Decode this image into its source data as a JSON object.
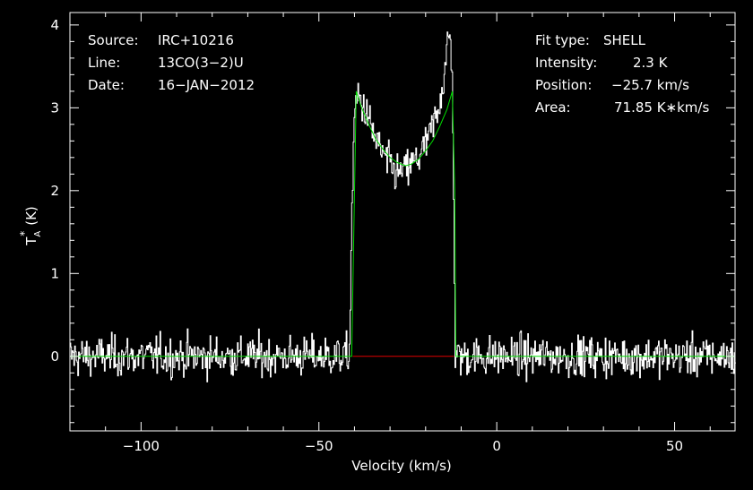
{
  "chart_data": {
    "type": "line",
    "title": "",
    "xlabel": "Velocity (km/s)",
    "ylabel": "T",
    "ylabel_sub": "A",
    "ylabel_sup": "*",
    "ylabel_unit": "(K)",
    "xlim": [
      -120,
      67
    ],
    "ylim": [
      -0.9,
      4.15
    ],
    "x_ticks": [
      -100,
      -50,
      0,
      50
    ],
    "x_tick_labels": [
      "−100",
      "−50",
      "0",
      "50"
    ],
    "y_ticks": [
      0,
      1,
      2,
      3,
      4
    ],
    "y_tick_labels": [
      "0",
      "1",
      "2",
      "3",
      "4"
    ],
    "grid": false,
    "info_left": [
      {
        "label": "Source:",
        "value": "IRC+10216"
      },
      {
        "label": "Line:",
        "value": "13CO(3−2)U"
      },
      {
        "label": "Date:",
        "value": "16−JAN−2012"
      }
    ],
    "info_right": [
      {
        "label": "Fit type:",
        "value": "SHELL"
      },
      {
        "label": "Intensity:",
        "value": "2.3 K"
      },
      {
        "label": "Position:",
        "value": "−25.7 km/s"
      },
      {
        "label": "Area:",
        "value": "71.85 K∗km/s"
      }
    ],
    "series": [
      {
        "color": "#ffffff",
        "style": "histogram",
        "noise_rms": 0.12,
        "profile_x": [
          -120,
          -41.5,
          -40.8,
          -40,
          -39,
          -37,
          -34,
          -31,
          -28,
          -25.7,
          -23,
          -20,
          -17,
          -15,
          -14,
          -13.2,
          -12.5,
          -11.8,
          67
        ],
        "profile_y": [
          0,
          0,
          1.8,
          3.0,
          3.15,
          2.95,
          2.6,
          2.35,
          2.2,
          2.25,
          2.35,
          2.55,
          2.9,
          3.35,
          3.75,
          3.85,
          3.3,
          0,
          0
        ]
      },
      {
        "color": "#00e000",
        "style": "line",
        "x": [
          -120,
          -40.8,
          -39.5,
          -38,
          -36,
          -34,
          -32,
          -30,
          -28,
          -25.7,
          -24,
          -22,
          -20,
          -18,
          -16,
          -14,
          -12.5,
          -11.8,
          -11.5,
          67
        ],
        "y": [
          0,
          0,
          3.2,
          3.0,
          2.8,
          2.62,
          2.5,
          2.4,
          2.34,
          2.3,
          2.32,
          2.38,
          2.48,
          2.6,
          2.78,
          2.98,
          3.2,
          2.0,
          0,
          0
        ]
      },
      {
        "color": "#e00000",
        "style": "line",
        "x": [
          -40.5,
          -12
        ],
        "y": [
          0,
          0
        ]
      }
    ]
  }
}
